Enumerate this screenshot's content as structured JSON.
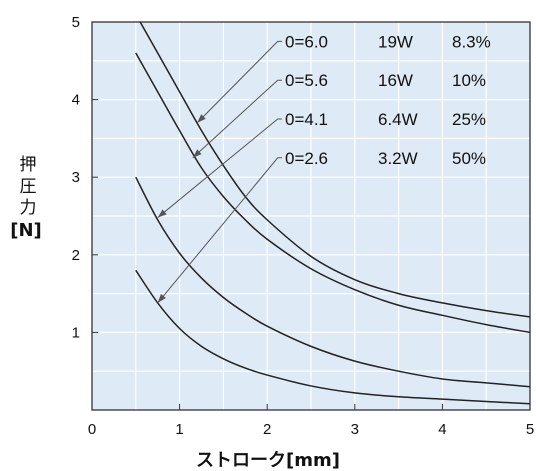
{
  "chart_data": {
    "type": "line",
    "xlabel": "ストローク[mm]",
    "ylabel_lines": [
      "押",
      "圧",
      "力"
    ],
    "ylabel_unit": "[N]",
    "xlim": [
      0,
      5
    ],
    "ylim": [
      0,
      5
    ],
    "x_ticks": [
      "0",
      "1",
      "2",
      "3",
      "4",
      "5"
    ],
    "y_ticks": [
      "1",
      "2",
      "3",
      "4",
      "5"
    ],
    "grid": true,
    "background_color": "#deeaf6",
    "line_color": "#222222",
    "legend_columns": 3,
    "series": [
      {
        "name": "0=6.0",
        "power": "19W",
        "duty": "8.3%",
        "label_y": 4.75,
        "arrow_to": [
          1.2,
          3.7
        ],
        "x": [
          0.55,
          0.75,
          1.0,
          1.25,
          1.5,
          1.75,
          2.0,
          2.5,
          3.0,
          3.5,
          4.0,
          4.5,
          5.0
        ],
        "y": [
          5.0,
          4.6,
          4.1,
          3.6,
          3.15,
          2.75,
          2.45,
          1.98,
          1.68,
          1.5,
          1.38,
          1.28,
          1.2
        ]
      },
      {
        "name": "0=5.6",
        "power": "16W",
        "duty": "10%",
        "label_y": 4.25,
        "arrow_to": [
          1.15,
          3.25
        ],
        "x": [
          0.5,
          0.75,
          1.0,
          1.25,
          1.5,
          1.75,
          2.0,
          2.5,
          3.0,
          3.5,
          4.0,
          4.5,
          5.0
        ],
        "y": [
          4.6,
          4.1,
          3.6,
          3.12,
          2.75,
          2.45,
          2.2,
          1.82,
          1.55,
          1.35,
          1.22,
          1.1,
          1.0
        ]
      },
      {
        "name": "0=4.1",
        "power": "6.4W",
        "duty": "25%",
        "label_y": 3.75,
        "arrow_to": [
          0.75,
          2.48
        ],
        "x": [
          0.5,
          0.75,
          1.0,
          1.25,
          1.5,
          1.75,
          2.0,
          2.5,
          3.0,
          3.5,
          4.0,
          4.5,
          5.0
        ],
        "y": [
          3.0,
          2.45,
          2.02,
          1.7,
          1.45,
          1.25,
          1.08,
          0.82,
          0.63,
          0.5,
          0.4,
          0.35,
          0.3
        ]
      },
      {
        "name": "0=2.6",
        "power": "3.2W",
        "duty": "50%",
        "label_y": 3.25,
        "arrow_to": [
          0.75,
          1.38
        ],
        "x": [
          0.5,
          0.75,
          1.0,
          1.25,
          1.5,
          1.75,
          2.0,
          2.5,
          3.0,
          3.5,
          4.0,
          4.5,
          5.0
        ],
        "y": [
          1.8,
          1.38,
          1.05,
          0.82,
          0.66,
          0.54,
          0.45,
          0.31,
          0.22,
          0.17,
          0.14,
          0.11,
          0.08
        ]
      }
    ]
  }
}
